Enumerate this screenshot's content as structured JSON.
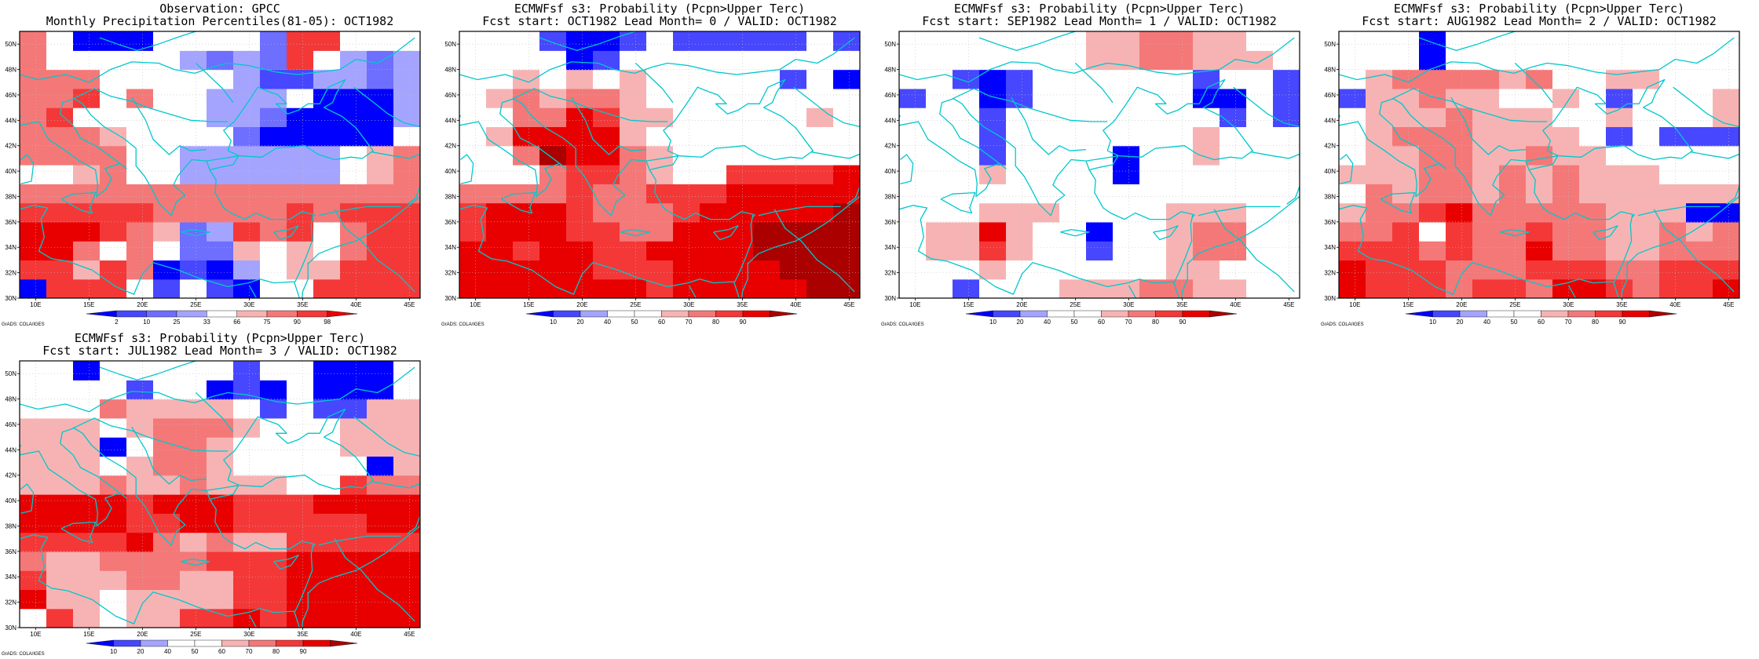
{
  "common": {
    "credit": "GrADS: COLA/IGES",
    "lon_ticks": [
      "10E",
      "15E",
      "20E",
      "25E",
      "30E",
      "35E",
      "40E",
      "45E"
    ],
    "lat_ticks": [
      "30N",
      "32N",
      "34N",
      "36N",
      "38N",
      "40N",
      "42N",
      "44N",
      "46N",
      "48N",
      "50N"
    ],
    "obs_colorbar_labels": [
      "2",
      "10",
      "25",
      "33",
      "66",
      "75",
      "90",
      "98"
    ],
    "fcst_colorbar_labels": [
      "10",
      "20",
      "40",
      "50",
      "60",
      "70",
      "80",
      "90"
    ],
    "colors": {
      "fcst_palette": [
        "#0000ff",
        "#4747ff",
        "#a4a4ff",
        "#ffffff",
        "#ffffff",
        "#f7b3b3",
        "#f47878",
        "#f43838",
        "#e80000",
        "#aa0000"
      ],
      "obs_palette": [
        "#0000ff",
        "#4747ff",
        "#6e6eff",
        "#a4a4ff",
        "#ffffff",
        "#f7b3b3",
        "#f47878",
        "#f43838",
        "#e80000"
      ],
      "coast": "#00c8cc",
      "grid": "#c0c0c0"
    }
  },
  "chart_data": [
    {
      "type": "heatmap",
      "title_line1": "Observation: GPCC",
      "title_line2": "Monthly Precipitation Percentiles(81-05): OCT1982",
      "colorbar": "obs",
      "x": [
        9.75,
        12.25,
        14.75,
        17.25,
        19.75,
        22.25,
        24.75,
        27.25,
        29.75,
        32.25,
        34.75,
        37.25,
        39.75,
        42.25,
        44.75
      ],
      "y": [
        30.75,
        32.25,
        33.75,
        35.25,
        36.75,
        38.25,
        39.75,
        41.25,
        42.75,
        44.25,
        45.75,
        47.25,
        48.75,
        50.25
      ],
      "z_classes": [
        [
          0,
          7,
          7,
          7,
          4,
          1,
          4,
          1,
          0,
          4,
          4,
          7,
          7,
          7,
          7
        ],
        [
          7,
          7,
          5,
          7,
          6,
          0,
          1,
          0,
          3,
          4,
          5,
          5,
          7,
          7,
          7
        ],
        [
          8,
          8,
          6,
          4,
          6,
          4,
          2,
          2,
          5,
          4,
          5,
          4,
          6,
          7,
          7
        ],
        [
          8,
          8,
          8,
          7,
          6,
          5,
          2,
          3,
          7,
          6,
          7,
          4,
          6,
          7,
          7
        ],
        [
          7,
          7,
          7,
          7,
          7,
          6,
          6,
          6,
          6,
          6,
          7,
          6,
          7,
          7,
          7
        ],
        [
          6,
          6,
          6,
          6,
          6,
          6,
          6,
          6,
          6,
          6,
          6,
          6,
          6,
          6,
          6
        ],
        [
          4,
          4,
          5,
          6,
          4,
          4,
          3,
          3,
          3,
          3,
          3,
          3,
          4,
          5,
          6
        ],
        [
          6,
          6,
          6,
          6,
          4,
          4,
          3,
          3,
          3,
          3,
          3,
          3,
          4,
          5,
          6
        ],
        [
          6,
          6,
          6,
          5,
          4,
          4,
          4,
          4,
          2,
          0,
          0,
          0,
          0,
          0,
          4
        ],
        [
          6,
          7,
          4,
          4,
          4,
          4,
          4,
          3,
          3,
          2,
          0,
          0,
          0,
          0,
          3
        ],
        [
          6,
          6,
          7,
          4,
          6,
          4,
          4,
          3,
          3,
          3,
          4,
          0,
          0,
          0,
          3
        ],
        [
          6,
          6,
          6,
          4,
          4,
          4,
          4,
          4,
          3,
          1,
          1,
          3,
          3,
          2,
          3
        ],
        [
          6,
          4,
          4,
          4,
          4,
          4,
          3,
          2,
          3,
          2,
          7,
          4,
          3,
          2,
          3
        ],
        [
          6,
          4,
          0,
          0,
          0,
          4,
          4,
          4,
          4,
          2,
          7,
          7,
          4,
          4,
          4
        ]
      ]
    },
    {
      "type": "heatmap",
      "title_line1": "ECMWFsf s3: Probability (Pcpn>Upper Terc)",
      "title_line2": "Fcst start: OCT1982  Lead Month= 0 / VALID: OCT1982",
      "colorbar": "fcst",
      "x": [
        9.75,
        12.25,
        14.75,
        17.25,
        19.75,
        22.25,
        24.75,
        27.25,
        29.75,
        32.25,
        34.75,
        37.25,
        39.75,
        42.25,
        44.75
      ],
      "y": [
        30.75,
        32.25,
        33.75,
        35.25,
        36.75,
        38.25,
        39.75,
        41.25,
        42.75,
        44.25,
        45.75,
        47.25,
        48.75,
        50.25
      ],
      "z_classes": [
        [
          8,
          8,
          8,
          8,
          8,
          8,
          8,
          7,
          8,
          8,
          8,
          8,
          8,
          9,
          9
        ],
        [
          8,
          8,
          8,
          8,
          8,
          7,
          7,
          7,
          8,
          8,
          8,
          8,
          9,
          9,
          9
        ],
        [
          8,
          8,
          7,
          8,
          8,
          7,
          7,
          8,
          8,
          8,
          8,
          9,
          9,
          9,
          9
        ],
        [
          7,
          8,
          8,
          8,
          7,
          7,
          6,
          6,
          8,
          8,
          8,
          9,
          9,
          9,
          9
        ],
        [
          7,
          8,
          8,
          8,
          7,
          6,
          6,
          6,
          7,
          8,
          8,
          8,
          8,
          8,
          9
        ],
        [
          6,
          6,
          6,
          6,
          7,
          6,
          6,
          7,
          7,
          7,
          8,
          8,
          8,
          8,
          8
        ],
        [
          3,
          3,
          3,
          6,
          7,
          7,
          6,
          5,
          3,
          3,
          7,
          7,
          7,
          7,
          8
        ],
        [
          3,
          3,
          6,
          9,
          8,
          8,
          6,
          5,
          3,
          3,
          3,
          3,
          3,
          3,
          3
        ],
        [
          3,
          5,
          8,
          8,
          8,
          8,
          5,
          3,
          3,
          3,
          3,
          3,
          3,
          3,
          3
        ],
        [
          3,
          3,
          6,
          6,
          8,
          7,
          5,
          5,
          3,
          3,
          3,
          3,
          3,
          5,
          3
        ],
        [
          3,
          5,
          6,
          5,
          6,
          6,
          5,
          3,
          3,
          3,
          3,
          3,
          3,
          3,
          3
        ],
        [
          3,
          3,
          5,
          3,
          5,
          3,
          5,
          3,
          3,
          3,
          3,
          3,
          1,
          3,
          0
        ],
        [
          3,
          3,
          3,
          3,
          0,
          1,
          3,
          3,
          3,
          3,
          3,
          3,
          3,
          3,
          3
        ],
        [
          3,
          3,
          3,
          1,
          0,
          0,
          1,
          3,
          1,
          1,
          1,
          1,
          1,
          3,
          1
        ]
      ]
    },
    {
      "type": "heatmap",
      "title_line1": "ECMWFsf s3: Probability (Pcpn>Upper Terc)",
      "title_line2": "Fcst start: SEP1982  Lead Month= 1 / VALID: OCT1982",
      "colorbar": "fcst",
      "x": [
        9.75,
        12.25,
        14.75,
        17.25,
        19.75,
        22.25,
        24.75,
        27.25,
        29.75,
        32.25,
        34.75,
        37.25,
        39.75,
        42.25,
        44.75
      ],
      "y": [
        30.75,
        32.25,
        33.75,
        35.25,
        36.75,
        38.25,
        39.75,
        41.25,
        42.75,
        44.25,
        45.75,
        47.25,
        48.75,
        50.25
      ],
      "z_classes": [
        [
          3,
          3,
          1,
          3,
          3,
          3,
          5,
          5,
          5,
          6,
          6,
          5,
          5,
          3,
          3
        ],
        [
          3,
          3,
          3,
          5,
          3,
          3,
          3,
          3,
          3,
          3,
          5,
          5,
          3,
          3,
          3
        ],
        [
          3,
          5,
          5,
          7,
          5,
          3,
          3,
          1,
          3,
          3,
          5,
          6,
          6,
          3,
          3
        ],
        [
          3,
          5,
          5,
          8,
          5,
          3,
          3,
          0,
          3,
          3,
          5,
          6,
          6,
          3,
          3
        ],
        [
          3,
          3,
          3,
          5,
          5,
          5,
          3,
          3,
          3,
          3,
          5,
          5,
          5,
          3,
          3
        ],
        [
          3,
          3,
          3,
          3,
          3,
          3,
          3,
          3,
          3,
          3,
          3,
          3,
          3,
          3,
          3
        ],
        [
          3,
          3,
          3,
          5,
          3,
          3,
          3,
          3,
          0,
          3,
          3,
          3,
          3,
          3,
          3
        ],
        [
          3,
          3,
          3,
          1,
          3,
          3,
          3,
          3,
          0,
          3,
          3,
          5,
          3,
          3,
          3
        ],
        [
          3,
          3,
          3,
          1,
          3,
          3,
          3,
          3,
          3,
          3,
          3,
          5,
          3,
          3,
          3
        ],
        [
          3,
          3,
          3,
          1,
          3,
          3,
          3,
          3,
          3,
          3,
          3,
          3,
          1,
          3,
          1
        ],
        [
          1,
          3,
          3,
          0,
          1,
          3,
          3,
          3,
          3,
          3,
          3,
          0,
          0,
          3,
          1
        ],
        [
          3,
          3,
          1,
          0,
          1,
          3,
          3,
          3,
          3,
          3,
          3,
          1,
          3,
          3,
          1
        ],
        [
          3,
          3,
          3,
          3,
          3,
          3,
          3,
          5,
          5,
          6,
          6,
          5,
          5,
          5,
          3
        ],
        [
          3,
          3,
          3,
          3,
          3,
          3,
          3,
          5,
          5,
          6,
          6,
          5,
          5,
          3,
          3
        ]
      ]
    },
    {
      "type": "heatmap",
      "title_line1": "ECMWFsf s3: Probability (Pcpn>Upper Terc)",
      "title_line2": "Fcst start: AUG1982  Lead Month= 2 / VALID: OCT1982",
      "colorbar": "fcst",
      "x": [
        9.75,
        12.25,
        14.75,
        17.25,
        19.75,
        22.25,
        24.75,
        27.25,
        29.75,
        32.25,
        34.75,
        37.25,
        39.75,
        42.25,
        44.75
      ],
      "y": [
        30.75,
        32.25,
        33.75,
        35.25,
        36.75,
        38.25,
        39.75,
        41.25,
        42.75,
        44.25,
        45.75,
        47.25,
        48.75,
        50.25
      ],
      "z_classes": [
        [
          8,
          7,
          7,
          7,
          6,
          7,
          7,
          6,
          8,
          8,
          7,
          6,
          7,
          7,
          8
        ],
        [
          8,
          7,
          7,
          7,
          6,
          6,
          6,
          7,
          7,
          7,
          6,
          6,
          7,
          7,
          7
        ],
        [
          7,
          7,
          7,
          6,
          7,
          6,
          6,
          8,
          6,
          6,
          5,
          5,
          6,
          6,
          6
        ],
        [
          6,
          6,
          7,
          3,
          7,
          6,
          6,
          7,
          6,
          6,
          5,
          5,
          6,
          5,
          6
        ],
        [
          5,
          6,
          6,
          7,
          8,
          6,
          6,
          6,
          6,
          6,
          5,
          5,
          5,
          0,
          0
        ],
        [
          3,
          6,
          5,
          6,
          6,
          5,
          6,
          5,
          6,
          5,
          5,
          5,
          5,
          5,
          5
        ],
        [
          5,
          5,
          5,
          6,
          6,
          5,
          6,
          5,
          6,
          5,
          5,
          5,
          3,
          3,
          3
        ],
        [
          3,
          5,
          5,
          6,
          6,
          5,
          5,
          6,
          5,
          5,
          3,
          3,
          3,
          3,
          3
        ],
        [
          3,
          5,
          6,
          6,
          6,
          5,
          5,
          5,
          5,
          3,
          1,
          3,
          1,
          1,
          1
        ],
        [
          3,
          5,
          5,
          5,
          6,
          5,
          5,
          5,
          3,
          3,
          5,
          3,
          3,
          3,
          5
        ],
        [
          1,
          5,
          5,
          6,
          5,
          5,
          3,
          3,
          5,
          3,
          1,
          3,
          3,
          3,
          5
        ],
        [
          3,
          5,
          6,
          6,
          6,
          6,
          5,
          6,
          3,
          3,
          5,
          5,
          3,
          3,
          3
        ],
        [
          3,
          3,
          3,
          0,
          3,
          3,
          3,
          3,
          3,
          3,
          3,
          3,
          3,
          3,
          3
        ],
        [
          3,
          3,
          3,
          0,
          3,
          3,
          3,
          3,
          3,
          3,
          3,
          3,
          3,
          3,
          3
        ]
      ]
    },
    {
      "type": "heatmap",
      "title_line1": "ECMWFsf s3: Probability (Pcpn>Upper Terc)",
      "title_line2": "Fcst start: JUL1982  Lead Month= 3 / VALID: OCT1982",
      "colorbar": "fcst",
      "x": [
        9.75,
        12.25,
        14.75,
        17.25,
        19.75,
        22.25,
        24.75,
        27.25,
        29.75,
        32.25,
        34.75,
        37.25,
        39.75,
        42.25,
        44.75
      ],
      "y": [
        30.75,
        32.25,
        33.75,
        35.25,
        36.75,
        38.25,
        39.75,
        41.25,
        42.75,
        44.25,
        45.75,
        47.25,
        48.75,
        50.25
      ],
      "z_classes": [
        [
          3,
          7,
          5,
          3,
          5,
          5,
          7,
          7,
          8,
          7,
          8,
          8,
          8,
          8,
          8
        ],
        [
          8,
          5,
          5,
          3,
          5,
          5,
          5,
          5,
          7,
          7,
          8,
          8,
          8,
          8,
          8
        ],
        [
          7,
          5,
          5,
          5,
          6,
          6,
          5,
          5,
          7,
          7,
          8,
          8,
          8,
          8,
          8
        ],
        [
          6,
          5,
          5,
          6,
          6,
          6,
          6,
          7,
          7,
          7,
          8,
          8,
          8,
          8,
          8
        ],
        [
          7,
          7,
          7,
          7,
          8,
          6,
          5,
          6,
          5,
          5,
          7,
          7,
          7,
          7,
          7
        ],
        [
          8,
          8,
          8,
          8,
          7,
          7,
          8,
          8,
          7,
          7,
          7,
          7,
          7,
          8,
          8
        ],
        [
          8,
          8,
          8,
          8,
          7,
          8,
          8,
          8,
          7,
          7,
          7,
          8,
          8,
          8,
          8
        ],
        [
          5,
          5,
          5,
          6,
          5,
          5,
          6,
          5,
          5,
          5,
          3,
          3,
          7,
          6,
          6
        ],
        [
          5,
          5,
          5,
          3,
          5,
          6,
          6,
          5,
          3,
          3,
          3,
          3,
          3,
          0,
          5
        ],
        [
          5,
          5,
          5,
          0,
          3,
          6,
          6,
          5,
          3,
          3,
          3,
          3,
          5,
          5,
          5
        ],
        [
          5,
          5,
          5,
          3,
          5,
          6,
          6,
          6,
          5,
          3,
          3,
          3,
          5,
          5,
          5
        ],
        [
          3,
          3,
          3,
          6,
          5,
          5,
          5,
          5,
          3,
          1,
          3,
          1,
          1,
          5,
          5
        ],
        [
          3,
          3,
          3,
          3,
          1,
          3,
          3,
          0,
          1,
          0,
          3,
          0,
          0,
          0,
          3
        ],
        [
          3,
          3,
          0,
          3,
          3,
          3,
          3,
          3,
          1,
          3,
          3,
          0,
          0,
          0,
          3
        ]
      ]
    }
  ]
}
